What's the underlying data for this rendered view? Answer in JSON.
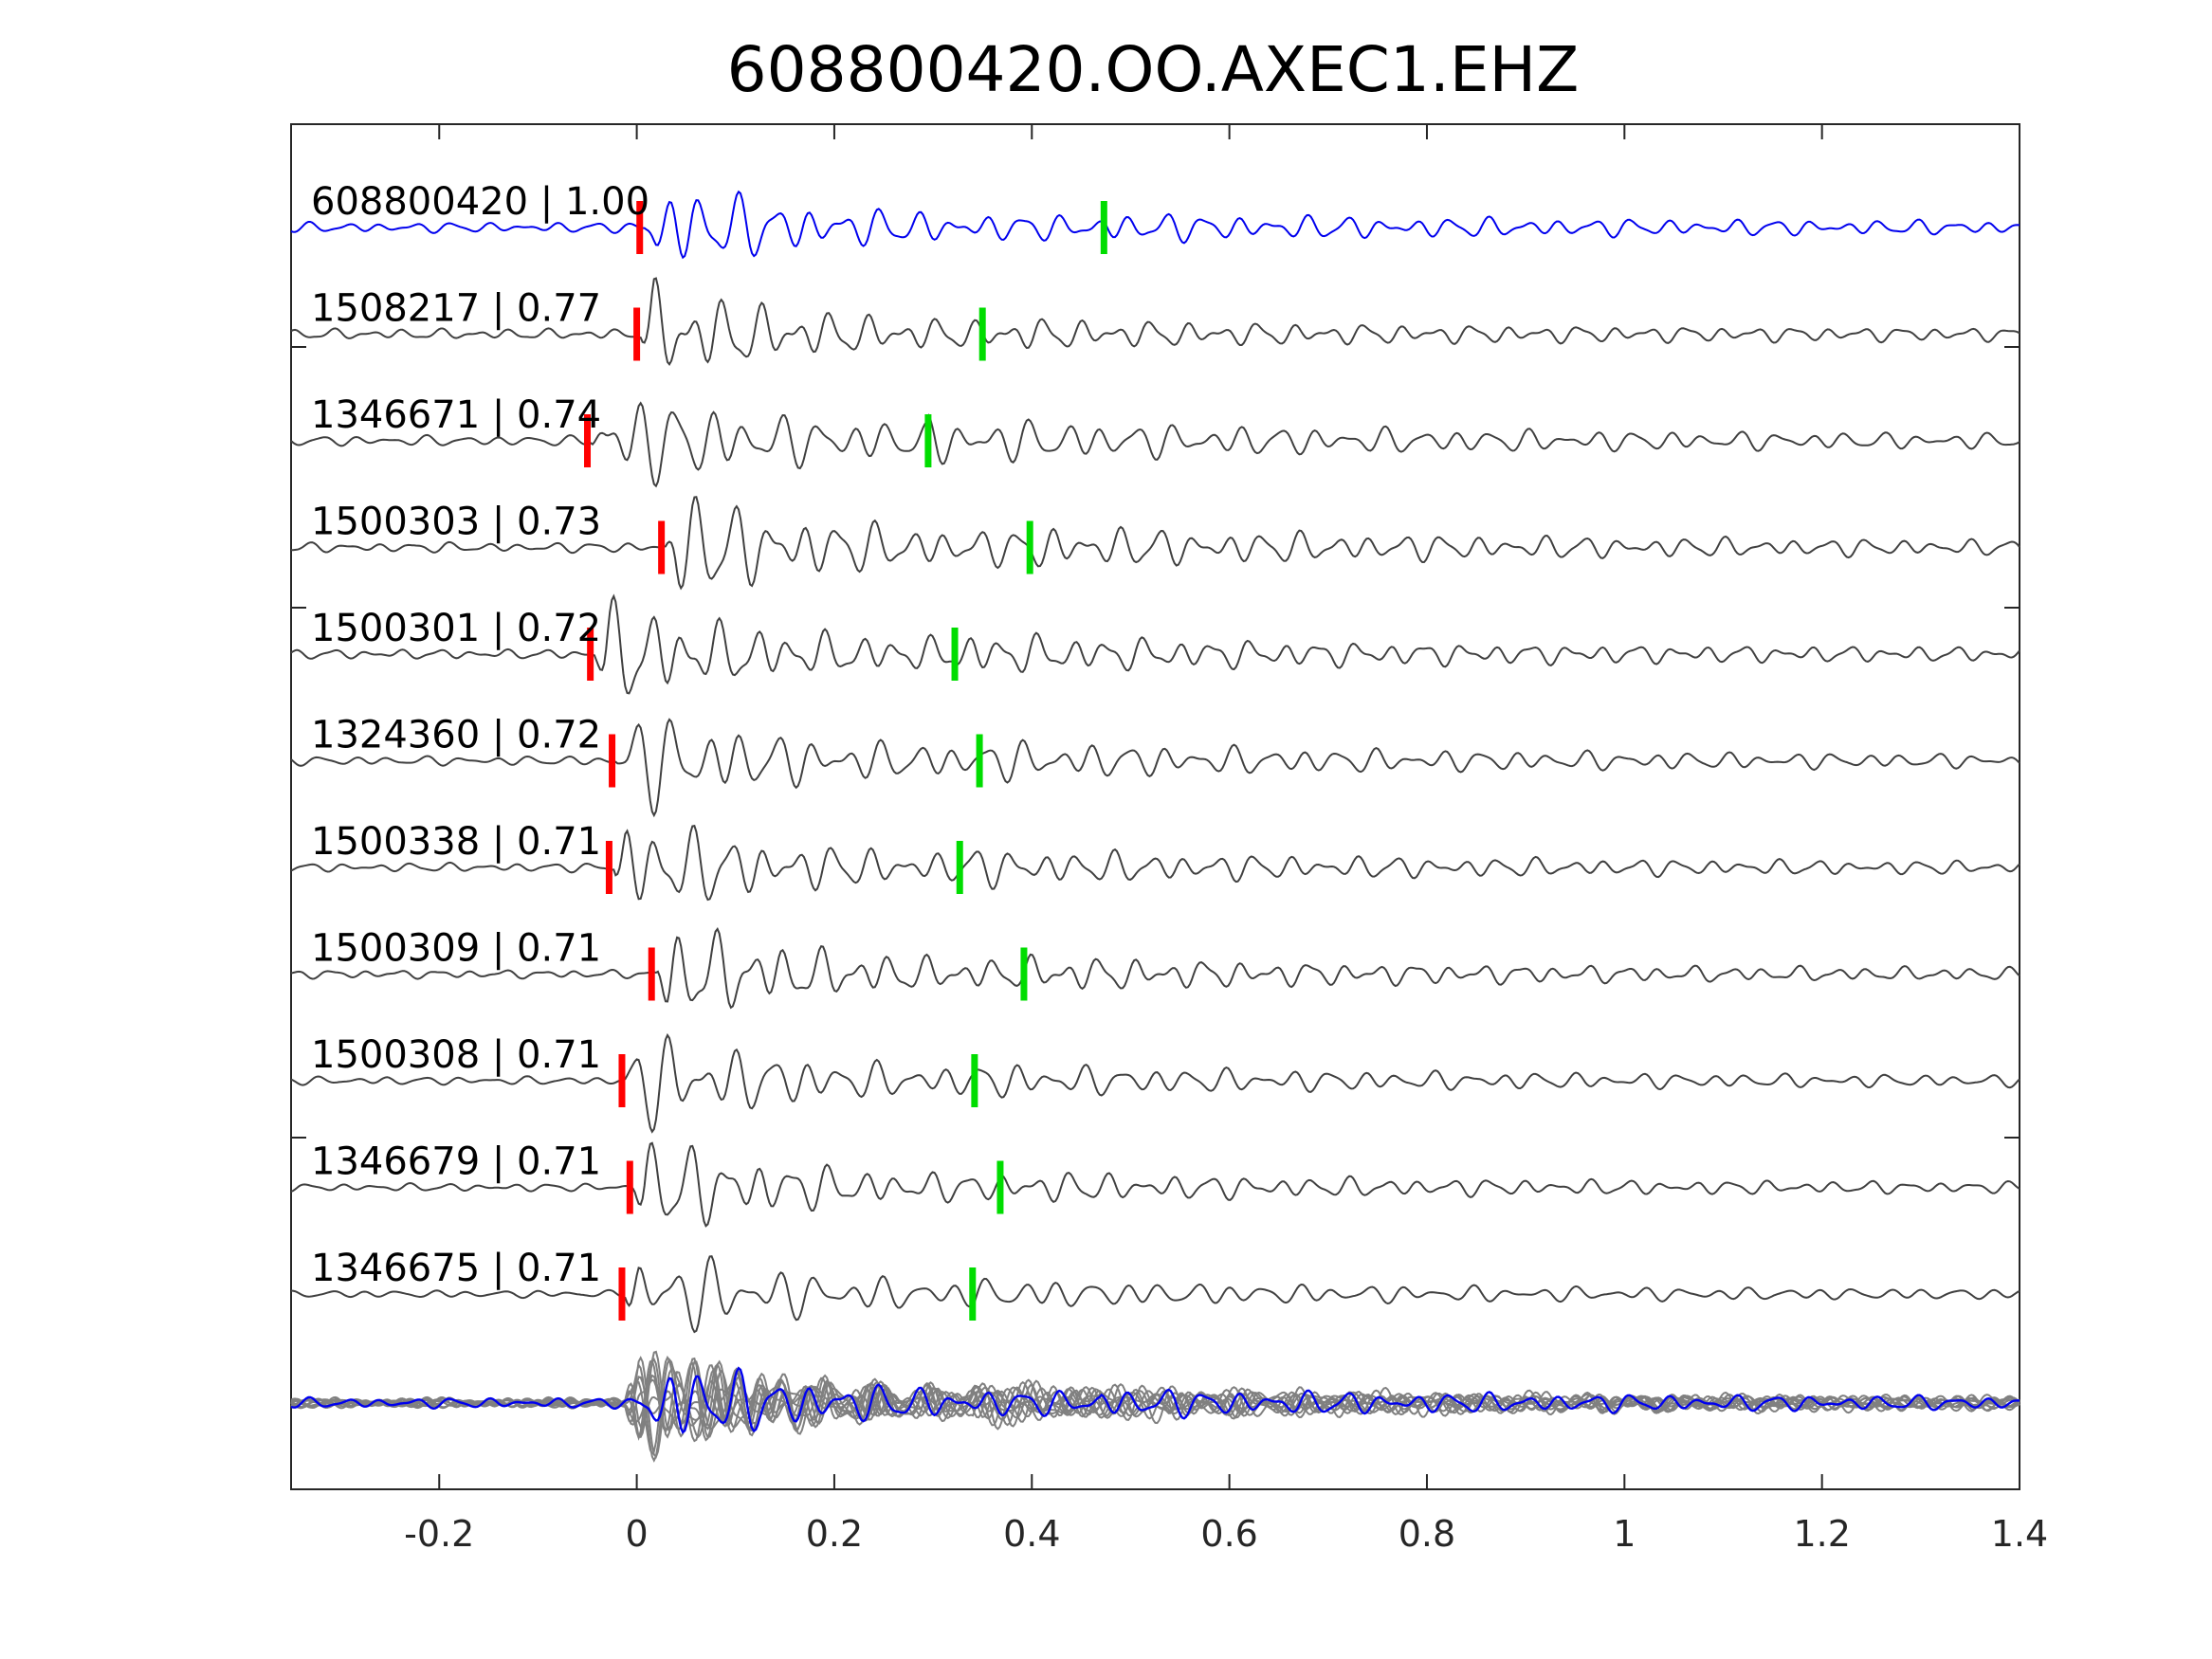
{
  "chart_data": {
    "type": "line",
    "title": "608800420.OO.AXEC1.EHZ",
    "xlabel": "",
    "ylabel": "",
    "xlim": [
      -0.35,
      1.4
    ],
    "x_ticks": [
      -0.2,
      0,
      0.2,
      0.4,
      0.6,
      0.8,
      1,
      1.2,
      1.4
    ],
    "x_tick_labels": [
      "-0.2",
      "0",
      "0.2",
      "0.4",
      "0.6",
      "0.8",
      "1",
      "1.2",
      "1.4"
    ],
    "grid": false,
    "legend": "none",
    "colors": {
      "reference": "#0000ee",
      "match": "#404040",
      "overlay": "#808080",
      "p_pick": "#ff0000",
      "s_pick": "#00dd00"
    },
    "series": [
      {
        "label": "608800420 | 1.00",
        "p_pick": 0.003,
        "s_pick": 0.473,
        "color": "reference"
      },
      {
        "label": "1508217 | 0.77",
        "p_pick": 0.0,
        "s_pick": 0.35,
        "color": "match"
      },
      {
        "label": "1346671 | 0.74",
        "p_pick": -0.05,
        "s_pick": 0.295,
        "color": "match"
      },
      {
        "label": "1500303 | 0.73",
        "p_pick": 0.025,
        "s_pick": 0.398,
        "color": "match"
      },
      {
        "label": "1500301 | 0.72",
        "p_pick": -0.047,
        "s_pick": 0.322,
        "color": "match"
      },
      {
        "label": "1324360 | 0.72",
        "p_pick": -0.025,
        "s_pick": 0.347,
        "color": "match"
      },
      {
        "label": "1500338 | 0.71",
        "p_pick": -0.028,
        "s_pick": 0.327,
        "color": "match"
      },
      {
        "label": "1500309 | 0.71",
        "p_pick": 0.015,
        "s_pick": 0.392,
        "color": "match"
      },
      {
        "label": "1500308 | 0.71",
        "p_pick": -0.015,
        "s_pick": 0.342,
        "color": "match"
      },
      {
        "label": "1346679 | 0.71",
        "p_pick": -0.007,
        "s_pick": 0.368,
        "color": "match"
      },
      {
        "label": "1346675 | 0.71",
        "p_pick": -0.015,
        "s_pick": 0.34,
        "color": "match"
      }
    ]
  }
}
